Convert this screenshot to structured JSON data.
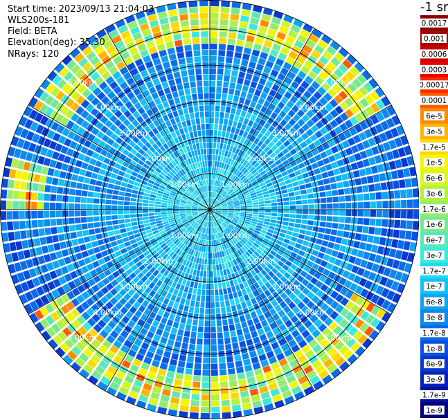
{
  "header": {
    "start_time": "Start time: 2023/09/13 21:04:03",
    "instrument": "WLS200s-181",
    "field": "Field: BETA",
    "elevation": "Elevation(deg): 35.30",
    "nrays": "NRays: 120"
  },
  "colorbar": {
    "unit": "-1 sr",
    "labels": [
      "0.0017",
      "0.001",
      "0.0006",
      "0.0003",
      "0.00017",
      "0.0001",
      "6e-5",
      "3e-5",
      "1.7e-5",
      "1e-5",
      "6e-6",
      "3e-6",
      "1.7e-6",
      "1e-6",
      "6e-7",
      "3e-7",
      "1.7e-7",
      "1e-7",
      "6e-8",
      "3e-8",
      "1.7e-8",
      "1e-8",
      "6e-9",
      "3e-9",
      "1.7e-9",
      "1e-9"
    ],
    "colors": [
      "#8b0000",
      "#a80000",
      "#c80000",
      "#e80000",
      "#ff2a00",
      "#ff5a00",
      "#ff8a00",
      "#ffb400",
      "#ffd800",
      "#f5f500",
      "#d8f520",
      "#b4f040",
      "#96ec6a",
      "#78e890",
      "#5ae8b8",
      "#3ce8dc",
      "#22d8f0",
      "#14c0f4",
      "#10a4f0",
      "#0e88ec",
      "#0c6ce8",
      "#0a50e0",
      "#0838d0",
      "#0622b8",
      "#04109c",
      "#020478"
    ]
  },
  "chart_data": {
    "type": "ppi",
    "title": "",
    "field": "BETA",
    "elevation_deg": 35.3,
    "nrays": 120,
    "range_rings_km": [
      1.0,
      2.0,
      3.0,
      4.0,
      5.0
    ],
    "ring_labels": [
      "1.00km",
      "2.00km",
      "3.00km",
      "4.00km",
      "5.00km"
    ],
    "max_range_km": 5.8,
    "spoke_angles_deg": [
      0,
      30,
      60,
      90,
      120,
      150,
      180,
      210,
      240,
      270,
      300,
      330
    ],
    "grid": true,
    "aerosol_band_range_km": [
      4.6,
      5.6
    ],
    "aerosol_band_azimuth_deg": [
      [
        300,
        360
      ],
      [
        0,
        60
      ],
      [
        120,
        240
      ],
      [
        270,
        285
      ]
    ]
  }
}
